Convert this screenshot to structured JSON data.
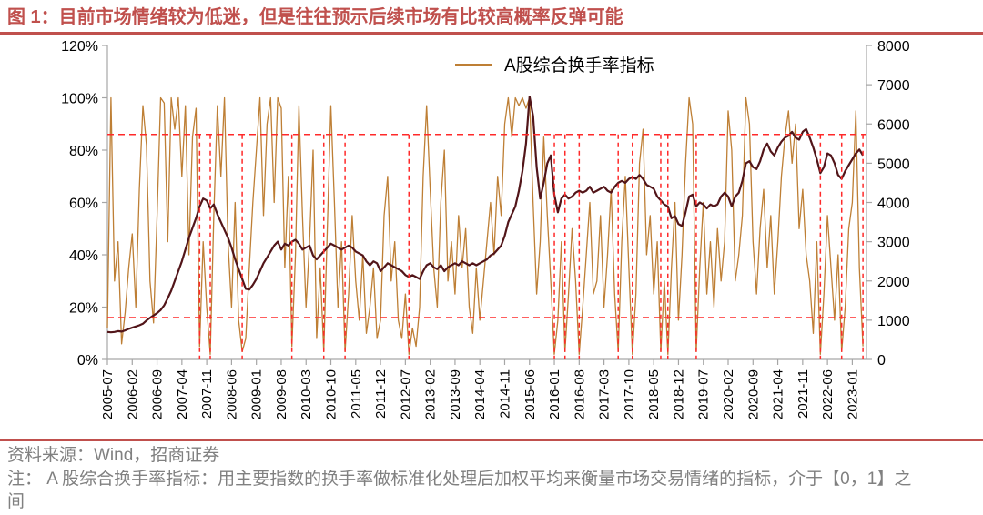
{
  "title": "图 1：目前市场情绪较为低迷，但是往往预示后续市场有比较高概率反弹可能",
  "footer": {
    "source": "资料来源：Wind，招商证券",
    "note": "注： A 股综合换手率指标：用主要指数的换手率做标准化处理后加权平均来衡量市场交易情绪的指标，介于【0，1】之间"
  },
  "colors": {
    "accent_rule": "#C0504D",
    "title_text": "#C0504D",
    "turnover_line": "#BE7F35",
    "index_line": "#521519",
    "signal_red": "#FF2A2A",
    "axis_gray": "#A6A6A6",
    "footer_text": "#808080"
  },
  "chart_data": {
    "type": "line",
    "legend": [
      {
        "label": "A股综合换手率指标",
        "color": "#BE7F35"
      }
    ],
    "legend_position": "top-center",
    "x_start": "2005-07",
    "x_tick_interval_months": 7,
    "months_total": 214,
    "x_tick_labels": [
      "2005-07",
      "2006-02",
      "2006-09",
      "2007-04",
      "2007-11",
      "2008-06",
      "2009-01",
      "2009-08",
      "2010-03",
      "2010-10",
      "2011-05",
      "2011-12",
      "2012-07",
      "2013-02",
      "2013-09",
      "2014-04",
      "2014-11",
      "2015-06",
      "2016-01",
      "2016-08",
      "2017-03",
      "2017-10",
      "2018-05",
      "2018-12",
      "2019-07",
      "2020-02",
      "2020-09",
      "2021-04",
      "2021-11",
      "2022-06",
      "2023-01"
    ],
    "left_axis": {
      "min": 0,
      "max": 120,
      "tick_step": 20,
      "unit": "%",
      "tick_labels": [
        "0%",
        "20%",
        "40%",
        "60%",
        "80%",
        "100%",
        "120%"
      ]
    },
    "right_axis": {
      "min": 0,
      "max": 8000,
      "tick_step": 1000,
      "tick_labels": [
        "0",
        "1000",
        "2000",
        "3000",
        "4000",
        "5000",
        "6000",
        "7000",
        "8000"
      ]
    },
    "thresholds": {
      "upper_pct": 86,
      "lower_pct": 16
    },
    "signal_lines": {
      "style": "vertical-red-dashed-from-upper-threshold-to-zero",
      "months_from_start": [
        26,
        29,
        38,
        52,
        61,
        67,
        85,
        126,
        129,
        133,
        144,
        148,
        156,
        158,
        166,
        201,
        207,
        213
      ],
      "approx_dates": [
        "2007-09",
        "2007-12",
        "2008-09",
        "2009-11",
        "2010-08",
        "2011-02",
        "2012-08",
        "2016-01",
        "2016-04",
        "2016-08",
        "2017-07",
        "2017-11",
        "2018-07",
        "2018-09",
        "2019-05",
        "2022-04",
        "2022-10",
        "2023-04"
      ]
    },
    "series": [
      {
        "id": "turnover",
        "legend_label": "A股综合换手率指标",
        "axis": "left",
        "unit": "%",
        "color": "#BE7F35",
        "monthly_values": [
          12,
          100,
          30,
          45,
          6,
          18,
          35,
          48,
          20,
          65,
          97,
          82,
          30,
          14,
          55,
          100,
          98,
          45,
          100,
          88,
          100,
          70,
          97,
          40,
          85,
          96,
          5,
          45,
          20,
          2,
          55,
          97,
          70,
          100,
          45,
          20,
          60,
          15,
          3,
          8,
          35,
          60,
          80,
          100,
          55,
          90,
          100,
          60,
          100,
          96,
          35,
          70,
          5,
          40,
          97,
          55,
          20,
          45,
          80,
          8,
          35,
          3,
          50,
          97,
          60,
          20,
          45,
          3,
          25,
          55,
          30,
          15,
          40,
          10,
          20,
          35,
          8,
          15,
          55,
          70,
          30,
          45,
          15,
          8,
          25,
          2,
          12,
          5,
          20,
          70,
          97,
          65,
          35,
          20,
          60,
          80,
          30,
          45,
          25,
          55,
          35,
          50,
          20,
          10,
          35,
          15,
          30,
          45,
          60,
          40,
          70,
          55,
          90,
          100,
          85,
          100,
          97,
          100,
          96,
          100,
          60,
          25,
          45,
          85,
          55,
          30,
          2,
          15,
          45,
          3,
          25,
          50,
          30,
          2,
          20,
          40,
          60,
          25,
          30,
          55,
          20,
          40,
          65,
          25,
          3,
          45,
          70,
          35,
          2,
          25,
          75,
          88,
          40,
          55,
          25,
          45,
          3,
          30,
          2,
          35,
          60,
          15,
          40,
          75,
          100,
          90,
          3,
          35,
          60,
          25,
          45,
          20,
          50,
          30,
          45,
          95,
          80,
          30,
          40,
          55,
          100,
          90,
          45,
          25,
          50,
          65,
          35,
          55,
          25,
          45,
          70,
          85,
          95,
          75,
          90,
          50,
          65,
          40,
          30,
          10,
          45,
          2,
          25,
          55,
          35,
          15,
          40,
          3,
          20,
          50,
          60,
          95,
          35,
          5
        ]
      },
      {
        "id": "index",
        "legend_label": null,
        "axis": "right",
        "unit": "points",
        "color": "#521519",
        "monthly_values": [
          700,
          690,
          700,
          720,
          710,
          740,
          780,
          810,
          840,
          870,
          910,
          990,
          1060,
          1120,
          1180,
          1260,
          1380,
          1560,
          1750,
          2000,
          2250,
          2500,
          2800,
          3100,
          3350,
          3600,
          3900,
          4100,
          4050,
          3850,
          3950,
          3700,
          3500,
          3300,
          3100,
          2850,
          2550,
          2300,
          2050,
          1800,
          1780,
          1900,
          2050,
          2250,
          2450,
          2600,
          2750,
          2900,
          3000,
          2800,
          2950,
          2900,
          3000,
          3050,
          2950,
          2800,
          2850,
          2900,
          2650,
          2550,
          2650,
          2750,
          2850,
          2950,
          2900,
          2850,
          2800,
          2850,
          2900,
          2850,
          2750,
          2700,
          2650,
          2500,
          2400,
          2500,
          2450,
          2250,
          2350,
          2450,
          2400,
          2350,
          2300,
          2250,
          2150,
          2100,
          2150,
          2100,
          2050,
          2250,
          2400,
          2450,
          2350,
          2300,
          2400,
          2250,
          2350,
          2400,
          2450,
          2400,
          2500,
          2450,
          2400,
          2450,
          2400,
          2450,
          2500,
          2550,
          2650,
          2700,
          2800,
          2900,
          3150,
          3500,
          3700,
          3900,
          4300,
          4800,
          5500,
          6700,
          6200,
          4900,
          4100,
          4500,
          5000,
          5200,
          4200,
          3750,
          4100,
          4200,
          4100,
          4150,
          4250,
          4300,
          4250,
          4300,
          4400,
          4250,
          4300,
          4350,
          4400,
          4300,
          4250,
          4400,
          4500,
          4550,
          4500,
          4600,
          4650,
          4600,
          4700,
          4600,
          4450,
          4400,
          4350,
          4150,
          4050,
          3950,
          3900,
          3600,
          3650,
          3450,
          3400,
          3750,
          4150,
          4200,
          3900,
          4000,
          3950,
          3850,
          3950,
          3900,
          3950,
          4150,
          4250,
          4150,
          3900,
          4150,
          4250,
          4550,
          5000,
          5050,
          4900,
          4850,
          5050,
          5350,
          5500,
          5300,
          5200,
          5400,
          5550,
          5650,
          5700,
          5800,
          5650,
          5600,
          5800,
          5870,
          5650,
          5400,
          5100,
          4750,
          4900,
          5250,
          5200,
          5000,
          4700,
          4600,
          4800,
          4950,
          5100,
          5250,
          5350,
          5200
        ]
      }
    ]
  }
}
